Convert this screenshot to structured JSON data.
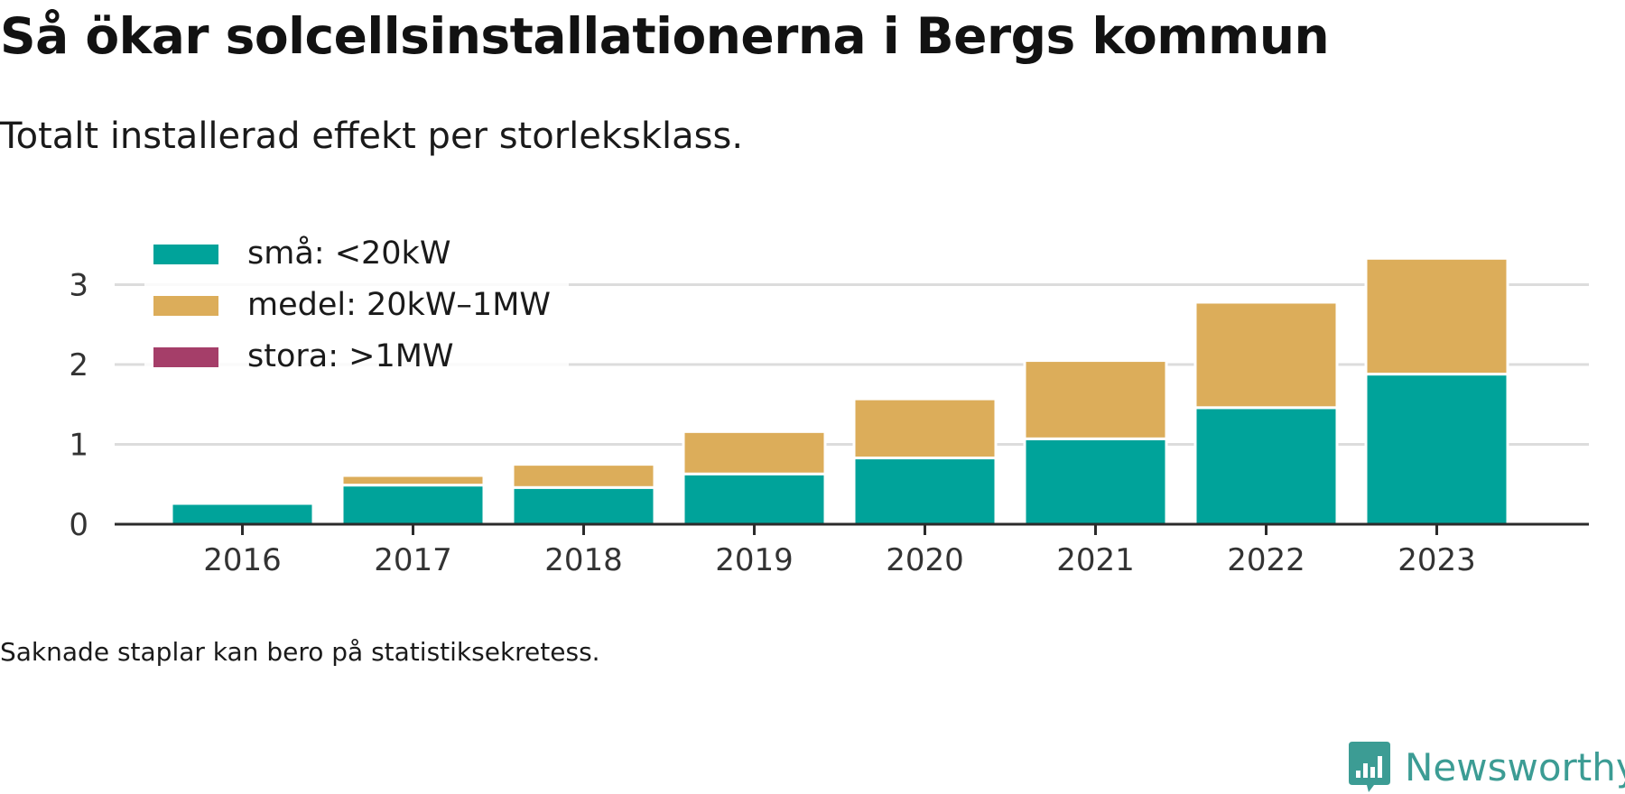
{
  "header": {
    "title": "Så ökar solcellsinstallationerna i Bergs kommun",
    "subtitle": "Totalt installerad effekt per storleksklass."
  },
  "footer": {
    "note": "Saknade staplar kan bero på statistiksekretess.",
    "brand": "Newsworthy",
    "brand_icon": "newsworthy-logo-icon",
    "brand_color": "#3c9c94"
  },
  "chart_data": {
    "type": "bar",
    "stacked": true,
    "title": "",
    "xlabel": "",
    "ylabel": "",
    "categories": [
      "2016",
      "2017",
      "2018",
      "2019",
      "2020",
      "2021",
      "2022",
      "2023"
    ],
    "series": [
      {
        "name": "små: <20kW",
        "color": "#00a39a",
        "values": [
          0.26,
          0.49,
          0.46,
          0.63,
          0.83,
          1.07,
          1.46,
          1.88
        ]
      },
      {
        "name": "medel: 20kW–1MW",
        "color": "#dcad5a",
        "values": [
          0,
          0.12,
          0.29,
          0.53,
          0.74,
          0.98,
          1.32,
          1.45
        ]
      },
      {
        "name": "stora: >1MW",
        "color": "#a53e69",
        "values": [
          0,
          0,
          0,
          0,
          0,
          0,
          0,
          0
        ]
      }
    ],
    "yticks": [
      0,
      1,
      2,
      3
    ],
    "ylim": [
      0,
      3.35
    ],
    "grid": true,
    "legend": "top-left"
  }
}
